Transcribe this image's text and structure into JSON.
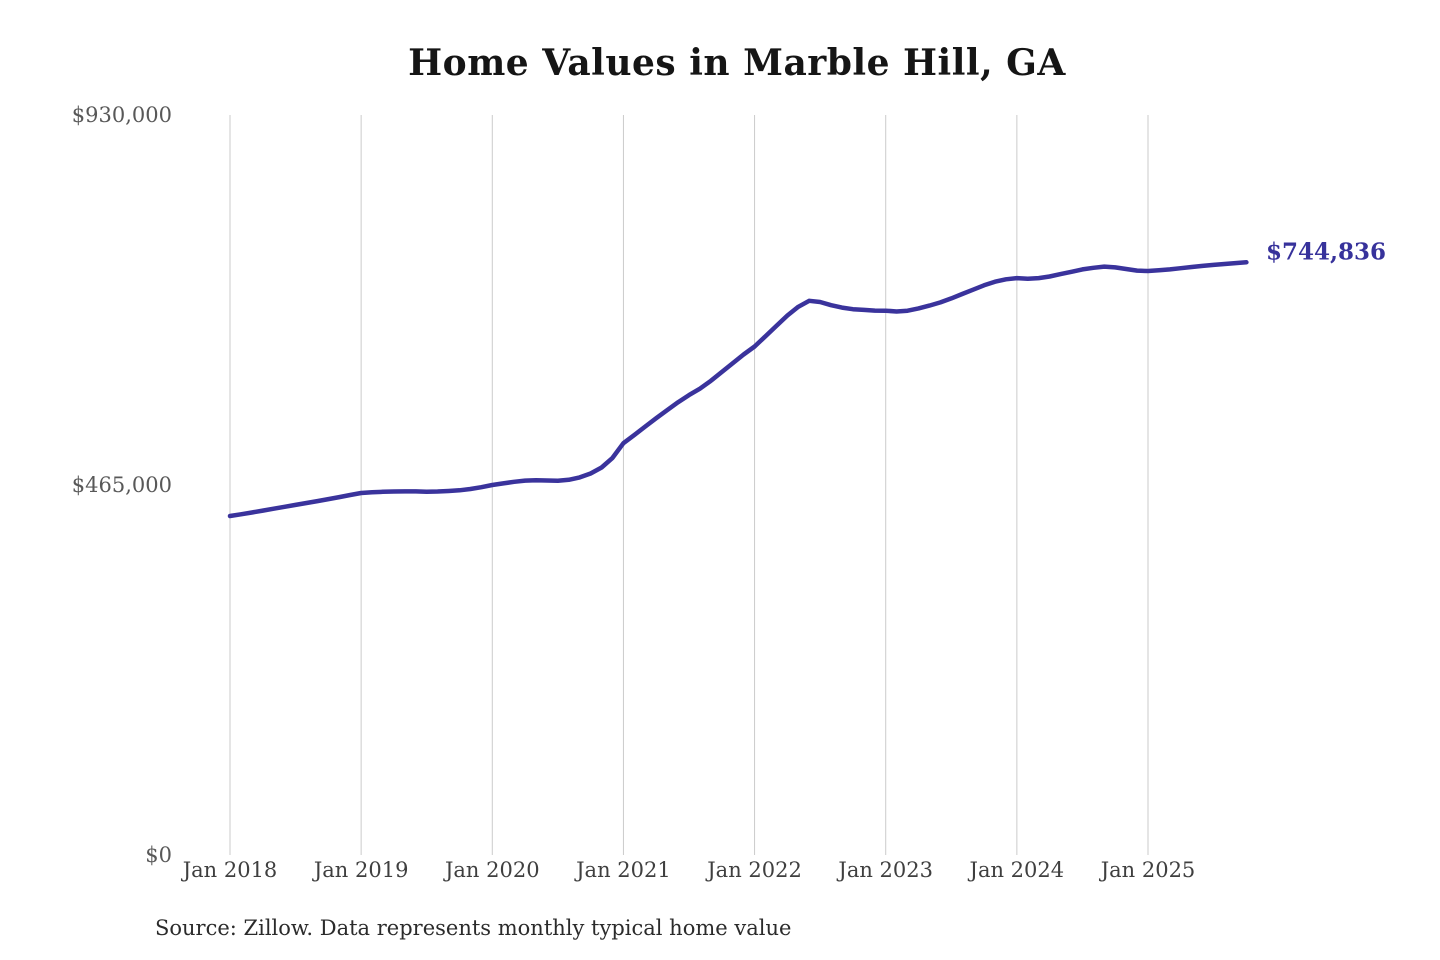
{
  "title": "Home Values in Marble Hill, GA",
  "source_note": "Source: Zillow. Data represents monthly typical home value",
  "end_label": "$744,836",
  "colors": {
    "line": "#3a339c",
    "end_label_text": "#37329b",
    "grid": "#cbcbcb",
    "title_text": "#151515",
    "y_axis_text": "#585858",
    "x_axis_text": "#3f3f3f",
    "source_text": "#2b2b2b",
    "background": "#ffffff"
  },
  "chart_data": {
    "type": "line",
    "title": "Home Values in Marble Hill, GA",
    "xlabel": "",
    "ylabel": "",
    "ylim": [
      0,
      930000
    ],
    "grid": "vertical-only",
    "legend_position": "none",
    "y_ticks": [
      {
        "label": "$0",
        "value": 0
      },
      {
        "label": "$465,000",
        "value": 465000
      },
      {
        "label": "$930,000",
        "value": 930000
      }
    ],
    "x_tick_labels": [
      "Jan 2018",
      "Jan 2019",
      "Jan 2020",
      "Jan 2021",
      "Jan 2022",
      "Jan 2023",
      "Jan 2024",
      "Jan 2025"
    ],
    "x_start_month": "2018-01",
    "x_end_month": "2025-10",
    "end_value": 744836,
    "series": [
      {
        "name": "Monthly typical home value",
        "values": [
          426000,
          428200,
          430500,
          432800,
          435200,
          437600,
          440000,
          442400,
          444800,
          447300,
          449800,
          452400,
          455000,
          455800,
          456400,
          456800,
          457000,
          456900,
          456600,
          456800,
          457400,
          458400,
          460000,
          462200,
          465000,
          467000,
          469000,
          470500,
          471000,
          470600,
          470300,
          471500,
          474500,
          479500,
          487000,
          499000,
          517500,
          528000,
          538500,
          549000,
          559000,
          569000,
          578000,
          586000,
          596000,
          607000,
          618000,
          629000,
          639000,
          652000,
          665000,
          678000,
          689000,
          696500,
          695000,
          691000,
          688000,
          686000,
          685000,
          684200,
          684000,
          683000,
          684000,
          687000,
          690500,
          694500,
          699500,
          705000,
          710500,
          716000,
          720500,
          723500,
          725000,
          724200,
          725000,
          727000,
          730000,
          733000,
          736000,
          738000,
          739500,
          738500,
          736500,
          734500,
          734000,
          734800,
          736000,
          737500,
          739000,
          740300,
          741600,
          742800,
          743900,
          744836
        ]
      }
    ]
  }
}
